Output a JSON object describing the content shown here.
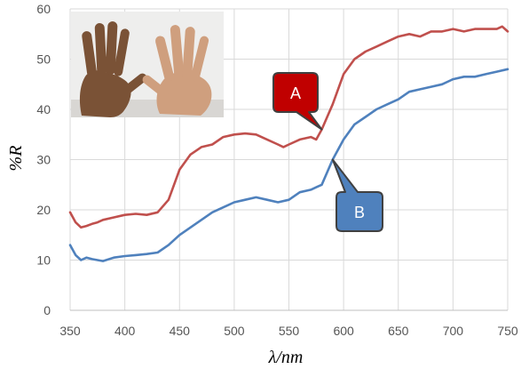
{
  "chart_data": {
    "type": "line",
    "xlabel": "λ/nm",
    "ylabel": "%R",
    "xlim": [
      350,
      750
    ],
    "ylim": [
      0,
      60
    ],
    "x_ticks": [
      350,
      400,
      450,
      500,
      550,
      600,
      650,
      700,
      750
    ],
    "y_ticks": [
      0,
      10,
      20,
      30,
      40,
      50,
      60
    ],
    "grid": true,
    "series": [
      {
        "name": "A",
        "color": "#c0504d",
        "x": [
          350,
          355,
          360,
          365,
          370,
          375,
          380,
          390,
          400,
          410,
          420,
          430,
          440,
          450,
          460,
          470,
          480,
          490,
          500,
          510,
          520,
          530,
          540,
          545,
          550,
          560,
          570,
          575,
          580,
          590,
          600,
          610,
          620,
          630,
          640,
          650,
          660,
          670,
          680,
          690,
          700,
          710,
          720,
          730,
          740,
          745,
          750
        ],
        "y": [
          19.5,
          17.5,
          16.5,
          16.8,
          17.2,
          17.5,
          18.0,
          18.5,
          19.0,
          19.2,
          19.0,
          19.5,
          22.0,
          28.0,
          31.0,
          32.5,
          33.0,
          34.5,
          35.0,
          35.2,
          35.0,
          34.0,
          33.0,
          32.5,
          33.0,
          34.0,
          34.5,
          34.0,
          36.0,
          41.0,
          47.0,
          50.0,
          51.5,
          52.5,
          53.5,
          54.5,
          55.0,
          54.5,
          55.5,
          55.5,
          56.0,
          55.5,
          56.0,
          56.0,
          56.0,
          56.5,
          55.5
        ]
      },
      {
        "name": "B",
        "color": "#4f81bd",
        "x": [
          350,
          355,
          360,
          365,
          370,
          375,
          380,
          390,
          400,
          410,
          420,
          430,
          440,
          450,
          460,
          470,
          480,
          490,
          500,
          510,
          520,
          530,
          540,
          550,
          560,
          570,
          575,
          580,
          590,
          600,
          610,
          620,
          630,
          640,
          650,
          660,
          670,
          680,
          690,
          700,
          710,
          720,
          730,
          740,
          750
        ],
        "y": [
          13.0,
          11.0,
          10.0,
          10.5,
          10.2,
          10.0,
          9.8,
          10.5,
          10.8,
          11.0,
          11.2,
          11.5,
          13.0,
          15.0,
          16.5,
          18.0,
          19.5,
          20.5,
          21.5,
          22.0,
          22.5,
          22.0,
          21.5,
          22.0,
          23.5,
          24.0,
          24.5,
          25.0,
          30.0,
          34.0,
          37.0,
          38.5,
          40.0,
          41.0,
          42.0,
          43.5,
          44.0,
          44.5,
          45.0,
          46.0,
          46.5,
          46.5,
          47.0,
          47.5,
          48.0
        ]
      }
    ],
    "annotations": [
      {
        "label": "A",
        "series": "A",
        "x": 580,
        "color": "#c00000"
      },
      {
        "label": "B",
        "series": "B",
        "x": 590,
        "color": "#4f81bd"
      }
    ],
    "inset": {
      "kind": "photo-of-two-hands"
    }
  }
}
